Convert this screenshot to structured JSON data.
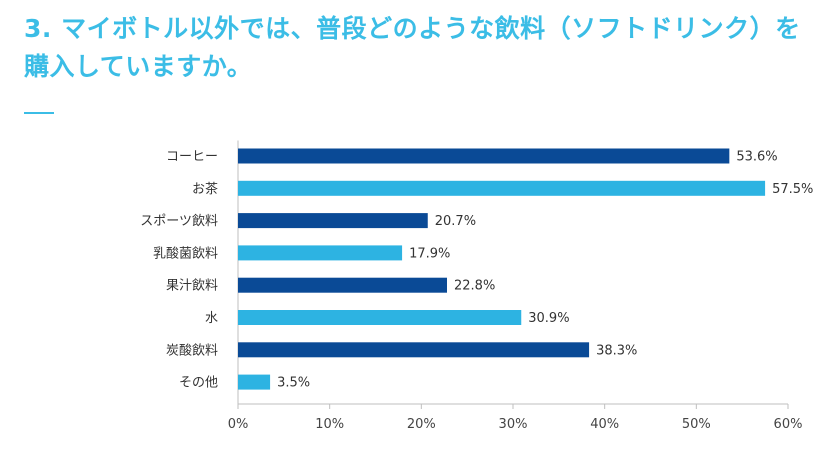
{
  "title": "3. マイボトル以外では、普段どのような飲料（ソフトドリンク）を購入していますか。",
  "colors": {
    "title": "#3bbde6",
    "bar_dark": "#0a4a96",
    "bar_light": "#2db3e2",
    "axis": "#bfbfbf"
  },
  "chart_data": {
    "type": "bar",
    "orientation": "horizontal",
    "categories": [
      "コーヒー",
      "お茶",
      "スポーツ飲料",
      "乳酸菌飲料",
      "果汁飲料",
      "水",
      "炭酸飲料",
      "その他"
    ],
    "values": [
      53.6,
      57.5,
      20.7,
      17.9,
      22.8,
      30.9,
      38.3,
      3.5
    ],
    "value_labels": [
      "53.6%",
      "57.5%",
      "20.7%",
      "17.9%",
      "22.8%",
      "30.9%",
      "38.3%",
      "3.5%"
    ],
    "bar_colors": [
      "#0a4a96",
      "#2db3e2",
      "#0a4a96",
      "#2db3e2",
      "#0a4a96",
      "#2db3e2",
      "#0a4a96",
      "#2db3e2"
    ],
    "xlim": [
      0,
      60
    ],
    "xticks": [
      0,
      10,
      20,
      30,
      40,
      50,
      60
    ],
    "xtick_labels": [
      "0%",
      "10%",
      "20%",
      "30%",
      "40%",
      "50%",
      "60%"
    ],
    "grid": false,
    "legend": "none"
  }
}
